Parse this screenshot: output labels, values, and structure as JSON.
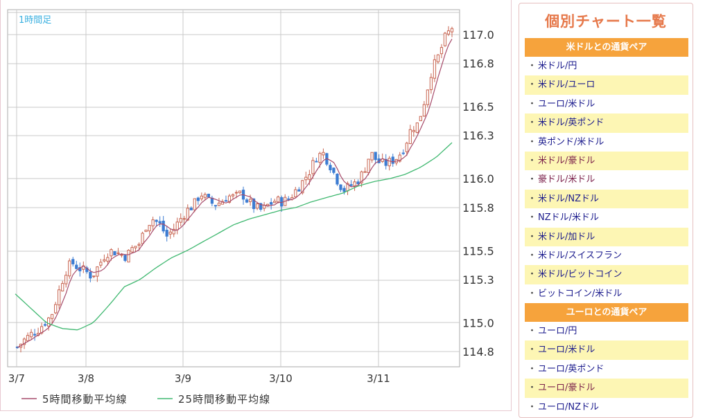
{
  "chart_data": {
    "type": "candlestick",
    "timeframe_label": "1時間足",
    "y_ticks": [
      "117.0",
      "116.8",
      "116.5",
      "116.3",
      "116.0",
      "115.8",
      "115.5",
      "115.3",
      "115.0",
      "114.8"
    ],
    "y_tick_values": [
      117.0,
      116.8,
      116.5,
      116.3,
      116.0,
      115.8,
      115.5,
      115.3,
      115.0,
      114.8
    ],
    "x_ticks": [
      "3/7",
      "3/8",
      "3/9",
      "3/10",
      "3/11"
    ],
    "ylim": [
      114.8,
      117.0
    ],
    "colors": {
      "up": "#c86450",
      "down": "#3c7cd2",
      "ma5": "#a64a6a",
      "ma25": "#3fb870",
      "grid": "#c8c8c8",
      "plot_bg": "#ffffff"
    },
    "legend": [
      {
        "name": "5時間移動平均線",
        "color": "#a64a6a"
      },
      {
        "name": "25時間移動平均線",
        "color": "#3fb870"
      }
    ],
    "ohlc_anchor_close": [
      114.83,
      114.88,
      114.92,
      114.95,
      115.0,
      115.05,
      115.2,
      115.35,
      115.42,
      115.38,
      115.36,
      115.32,
      115.4,
      115.48,
      115.5,
      115.48,
      115.46,
      115.52,
      115.55,
      115.68,
      115.72,
      115.68,
      115.6,
      115.65,
      115.72,
      115.78,
      115.82,
      115.9,
      115.85,
      115.82,
      115.84,
      115.88,
      115.87,
      115.9,
      115.84,
      115.8,
      115.78,
      115.82,
      115.85,
      115.84,
      115.86,
      115.92,
      115.98,
      116.05,
      116.15,
      116.18,
      116.1,
      116.0,
      115.92,
      115.95,
      115.98,
      116.05,
      116.18,
      116.12,
      116.1,
      116.12,
      116.15,
      116.22,
      116.35,
      116.38,
      116.55,
      116.75,
      116.85,
      116.98,
      117.05
    ],
    "ma25_anchor": [
      115.2,
      115.1,
      115.0,
      114.96,
      114.95,
      115.0,
      115.12,
      115.25,
      115.3,
      115.38,
      115.45,
      115.5,
      115.56,
      115.62,
      115.68,
      115.72,
      115.75,
      115.78,
      115.8,
      115.84,
      115.87,
      115.9,
      115.95,
      115.98,
      116.0,
      116.03,
      116.08,
      116.15,
      116.25
    ]
  },
  "sidebar": {
    "title": "個別チャート一覧",
    "sections": [
      {
        "heading": "米ドルとの通貨ペア",
        "items": [
          "米ドル/円",
          "米ドル/ユーロ",
          "ユーロ/米ドル",
          "米ドル/英ポンド",
          "英ポンド/米ドル",
          "米ドル/豪ドル",
          "豪ドル/米ドル",
          "米ドル/NZドル",
          "NZドル/米ドル",
          "米ドル/加ドル",
          "米ドル/スイスフラン",
          "米ドル/ビットコイン",
          "ビットコイン/米ドル"
        ]
      },
      {
        "heading": "ユーロとの通貨ペア",
        "items": [
          "ユーロ/円",
          "ユーロ/米ドル",
          "ユーロ/英ポンド",
          "ユーロ/豪ドル",
          "ユーロ/NZドル"
        ]
      }
    ]
  }
}
